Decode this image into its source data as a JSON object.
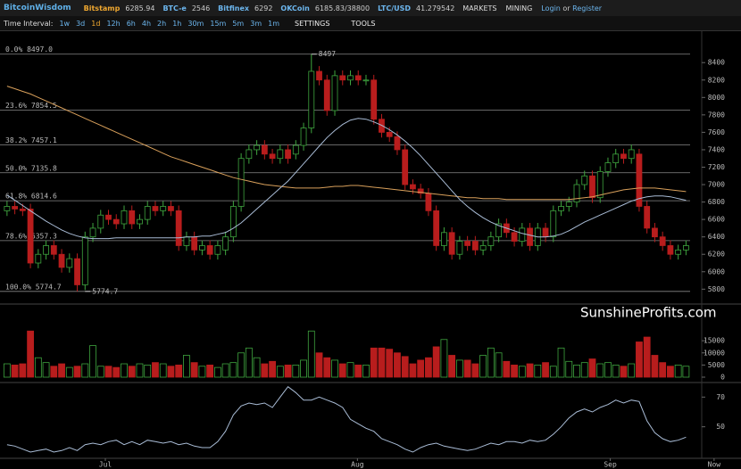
{
  "header": {
    "brand": "BitcoinWisdom",
    "tickers": [
      {
        "name": "Bitstamp",
        "price": "6285.94"
      },
      {
        "name": "BTC-e",
        "price": "2546"
      },
      {
        "name": "Bitfinex",
        "price": "6292"
      },
      {
        "name": "OKCoin",
        "price": "6185.83/38800"
      },
      {
        "name": "LTC/USD",
        "price": "41.279542"
      }
    ],
    "menus": [
      "MARKETS",
      "MINING"
    ],
    "login": "Login",
    "or": "or",
    "register": "Register"
  },
  "toolbar": {
    "label": "Time Interval:",
    "intervals": [
      "1w",
      "3d",
      "1d",
      "12h",
      "6h",
      "4h",
      "2h",
      "1h",
      "30m",
      "15m",
      "5m",
      "3m",
      "1m"
    ],
    "active": 2,
    "settings": "SETTINGS",
    "tools": "TOOLS"
  },
  "watermark": "SunshineProfits.com",
  "chart_data": [
    {
      "type": "candlestick",
      "up_color": "#3fa53f",
      "down_color": "#b81d1d",
      "open": [
        6700,
        6750,
        6720,
        6720,
        6100,
        6200,
        6300,
        6200,
        6050,
        6150,
        5850,
        6400,
        6500,
        6650,
        6600,
        6550,
        6700,
        6550,
        6600,
        6750,
        6700,
        6750,
        6700,
        6300,
        6400,
        6250,
        6300,
        6200,
        6250,
        6400,
        6750,
        7300,
        7400,
        7450,
        7350,
        7300,
        7400,
        7350,
        7450,
        7650,
        8300,
        8200,
        7850,
        8250,
        8200,
        8250,
        8200,
        8200,
        7750,
        7600,
        7550,
        7400,
        7000,
        6950,
        6900,
        6700,
        6300,
        6450,
        6200,
        6350,
        6350,
        6250,
        6300,
        6400,
        6550,
        6450,
        6350,
        6500,
        6300,
        6500,
        6400,
        6700,
        6750,
        6800,
        7000,
        7100,
        6850,
        7150,
        7250,
        7350,
        7300,
        7350,
        6750,
        6500,
        6400,
        6300,
        6200,
        6250
      ],
      "high": [
        6810,
        6810,
        6780,
        6780,
        6260,
        6360,
        6360,
        6260,
        6210,
        6210,
        6460,
        6560,
        6710,
        6710,
        6660,
        6760,
        6760,
        6660,
        6810,
        6810,
        6810,
        6810,
        6760,
        6460,
        6460,
        6360,
        6360,
        6360,
        6460,
        6810,
        7360,
        7460,
        7510,
        7510,
        7410,
        7460,
        7460,
        7510,
        7710,
        8497,
        8360,
        8260,
        8310,
        8310,
        8310,
        8310,
        8260,
        8260,
        7810,
        7660,
        7610,
        7460,
        7060,
        7010,
        6960,
        6760,
        6510,
        6510,
        6410,
        6410,
        6410,
        6360,
        6460,
        6610,
        6610,
        6510,
        6560,
        6560,
        6560,
        6560,
        6760,
        6810,
        6860,
        7060,
        7160,
        7160,
        7210,
        7310,
        7410,
        7410,
        7460,
        7410,
        6810,
        6560,
        6460,
        6360,
        6310,
        6360
      ],
      "low": [
        6640,
        6660,
        6640,
        6040,
        6040,
        6140,
        6140,
        5990,
        5990,
        5774.7,
        5790,
        6340,
        6440,
        6540,
        6490,
        6490,
        6490,
        6490,
        6540,
        6640,
        6640,
        6640,
        6240,
        6240,
        6190,
        6190,
        6140,
        6140,
        6190,
        6340,
        6690,
        7240,
        7340,
        7290,
        7240,
        7240,
        7240,
        7290,
        7390,
        7590,
        8140,
        7790,
        7790,
        8140,
        8140,
        8140,
        8140,
        7690,
        7540,
        7490,
        7340,
        6940,
        6890,
        6840,
        6640,
        6240,
        6240,
        6140,
        6140,
        6240,
        6190,
        6190,
        6240,
        6340,
        6390,
        6290,
        6290,
        6240,
        6240,
        6340,
        6340,
        6640,
        6690,
        6740,
        6940,
        6790,
        6790,
        7090,
        7190,
        7240,
        7240,
        6690,
        6440,
        6340,
        6240,
        6140,
        6140,
        6190
      ],
      "close": [
        6750,
        6720,
        6700,
        6100,
        6200,
        6300,
        6200,
        6050,
        6150,
        5850,
        6400,
        6500,
        6650,
        6600,
        6550,
        6700,
        6550,
        6600,
        6750,
        6700,
        6750,
        6700,
        6300,
        6400,
        6250,
        6300,
        6200,
        6300,
        6400,
        6750,
        7300,
        7400,
        7450,
        7350,
        7300,
        7400,
        7300,
        7450,
        7650,
        8300,
        8200,
        7850,
        8250,
        8200,
        8250,
        8200,
        8200,
        7750,
        7600,
        7550,
        7400,
        7000,
        6950,
        6900,
        6700,
        6300,
        6450,
        6200,
        6350,
        6300,
        6250,
        6300,
        6400,
        6550,
        6450,
        6350,
        6500,
        6300,
        6500,
        6400,
        6700,
        6750,
        6800,
        7000,
        7100,
        6850,
        7150,
        7250,
        7350,
        7300,
        7400,
        6750,
        6500,
        6400,
        6300,
        6200,
        6250,
        6300
      ],
      "series": [
        {
          "color": "#d9a05b",
          "values": [
            8130,
            8100,
            8070,
            8040,
            8000,
            7960,
            7920,
            7880,
            7840,
            7800,
            7760,
            7720,
            7680,
            7640,
            7600,
            7560,
            7520,
            7480,
            7440,
            7400,
            7360,
            7320,
            7290,
            7260,
            7230,
            7200,
            7170,
            7140,
            7110,
            7080,
            7060,
            7040,
            7020,
            7000,
            6990,
            6980,
            6970,
            6960,
            6960,
            6960,
            6960,
            6970,
            6980,
            6980,
            6990,
            6990,
            6980,
            6970,
            6960,
            6950,
            6940,
            6930,
            6920,
            6910,
            6900,
            6890,
            6880,
            6870,
            6860,
            6850,
            6850,
            6840,
            6840,
            6840,
            6830,
            6830,
            6830,
            6830,
            6830,
            6830,
            6830,
            6830,
            6830,
            6840,
            6850,
            6860,
            6880,
            6900,
            6920,
            6940,
            6950,
            6960,
            6960,
            6960,
            6950,
            6940,
            6930,
            6920
          ]
        },
        {
          "color": "#a9bcd6",
          "values": [
            6880,
            6820,
            6760,
            6700,
            6640,
            6580,
            6530,
            6480,
            6440,
            6410,
            6390,
            6380,
            6380,
            6380,
            6390,
            6390,
            6390,
            6390,
            6390,
            6390,
            6390,
            6390,
            6390,
            6400,
            6400,
            6410,
            6410,
            6430,
            6450,
            6500,
            6560,
            6640,
            6720,
            6800,
            6880,
            6960,
            7040,
            7140,
            7240,
            7340,
            7440,
            7540,
            7620,
            7690,
            7740,
            7760,
            7750,
            7720,
            7680,
            7630,
            7570,
            7500,
            7420,
            7330,
            7230,
            7130,
            7030,
            6930,
            6830,
            6750,
            6680,
            6620,
            6570,
            6530,
            6500,
            6470,
            6440,
            6420,
            6400,
            6400,
            6410,
            6430,
            6470,
            6520,
            6570,
            6610,
            6650,
            6690,
            6730,
            6770,
            6810,
            6840,
            6860,
            6870,
            6870,
            6860,
            6840,
            6820
          ]
        }
      ],
      "levels": [
        {
          "value": 8497,
          "label": "0.0% 8497.0"
        },
        {
          "value": 7854.5,
          "label": "23.6% 7854.5"
        },
        {
          "value": 7457.1,
          "label": "38.2% 7457.1"
        },
        {
          "value": 7135.8,
          "label": "50.0% 7135.8"
        },
        {
          "value": 6814.6,
          "label": "61.8% 6814.6"
        },
        {
          "value": 6357.3,
          "label": "78.6% 6357.3"
        },
        {
          "value": 5774.7,
          "label": "100.0% 5774.7"
        }
      ],
      "annotations": [
        {
          "x": 39,
          "value": 8497,
          "label": "8497"
        },
        {
          "x": 10,
          "value": 5774.7,
          "label": "5774.7"
        }
      ],
      "xlim": [
        -0.9,
        88.9
      ],
      "ylim": [
        5660,
        8750
      ],
      "yticks": [
        5800,
        6000,
        6200,
        6400,
        6600,
        6800,
        7000,
        7200,
        7400,
        7600,
        7800,
        8000,
        8200,
        8400
      ]
    },
    {
      "type": "bar",
      "values": [
        5500,
        5000,
        5500,
        19000,
        8000,
        6000,
        4500,
        5500,
        4000,
        4500,
        5500,
        13000,
        4500,
        4500,
        4000,
        5500,
        4500,
        5500,
        5000,
        6000,
        5500,
        4500,
        5000,
        9000,
        6000,
        4500,
        5000,
        4000,
        5500,
        6000,
        10000,
        12000,
        8000,
        5500,
        6500,
        4500,
        5000,
        5000,
        7000,
        19000,
        10000,
        8000,
        7000,
        5500,
        6000,
        5000,
        5000,
        12000,
        12000,
        11500,
        10000,
        8500,
        5500,
        7000,
        8000,
        12500,
        15500,
        9000,
        7000,
        7000,
        5500,
        9000,
        12000,
        10000,
        6500,
        5000,
        4500,
        5500,
        5000,
        6000,
        4500,
        12000,
        6500,
        5000,
        6000,
        7500,
        5500,
        6000,
        5000,
        4500,
        5500,
        14500,
        16500,
        9000,
        6000,
        4500,
        5000,
        4500
      ],
      "xlim": [
        -0.9,
        88.9
      ],
      "ylim": [
        0,
        29000
      ],
      "yticks": [
        0,
        5000,
        10000,
        15000
      ]
    },
    {
      "type": "line",
      "color": "#a9bcd6",
      "values": [
        38,
        37,
        35,
        33,
        34,
        35,
        33,
        34,
        36,
        34,
        38,
        39,
        38,
        40,
        41,
        38,
        40,
        38,
        41,
        40,
        39,
        40,
        38,
        39,
        37,
        36,
        36,
        40,
        47,
        58,
        64,
        66,
        65,
        66,
        63,
        70,
        77,
        73,
        68,
        68,
        70,
        68,
        66,
        63,
        55,
        52,
        49,
        47,
        42,
        40,
        38,
        35,
        33,
        36,
        38,
        39,
        37,
        36,
        35,
        34,
        35,
        37,
        39,
        38,
        40,
        40,
        39,
        41,
        40,
        41,
        45,
        50,
        56,
        60,
        62,
        60,
        63,
        65,
        68,
        66,
        68,
        67,
        54,
        46,
        42,
        40,
        41,
        43
      ],
      "xlim": [
        -0.9,
        88.9
      ],
      "ylim": [
        30,
        78
      ],
      "yticks": [
        50,
        70
      ],
      "xticks": [
        {
          "value": 12.6,
          "label": "Jul"
        },
        {
          "value": 44.9,
          "label": "Aug"
        },
        {
          "value": 77.3,
          "label": "Sep"
        },
        {
          "value": 90.6,
          "label": "Now"
        }
      ]
    }
  ]
}
